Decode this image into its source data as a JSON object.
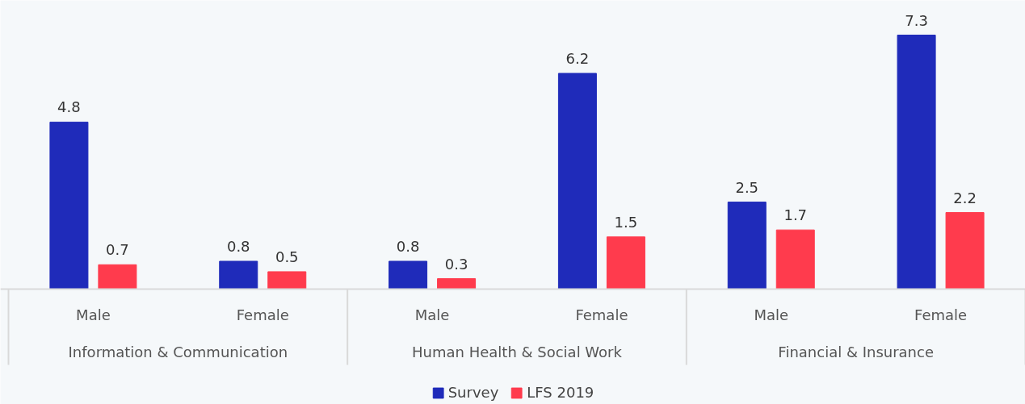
{
  "chart_data": {
    "type": "bar",
    "categories": [
      "Male",
      "Female",
      "Male",
      "Female",
      "Male",
      "Female"
    ],
    "series": [
      {
        "name": "Survey",
        "color": "#1f2bba",
        "values": [
          4.8,
          0.8,
          0.8,
          6.2,
          2.5,
          7.3
        ]
      },
      {
        "name": "LFS 2019",
        "color": "#ff3b4d",
        "values": [
          0.7,
          0.5,
          0.3,
          1.5,
          1.7,
          2.2
        ]
      }
    ],
    "data_labels": true,
    "legend": "bottom",
    "annotations": [
      "Information & Communication",
      "Human Health & Social Work",
      "Financial & Insurance"
    ]
  }
}
